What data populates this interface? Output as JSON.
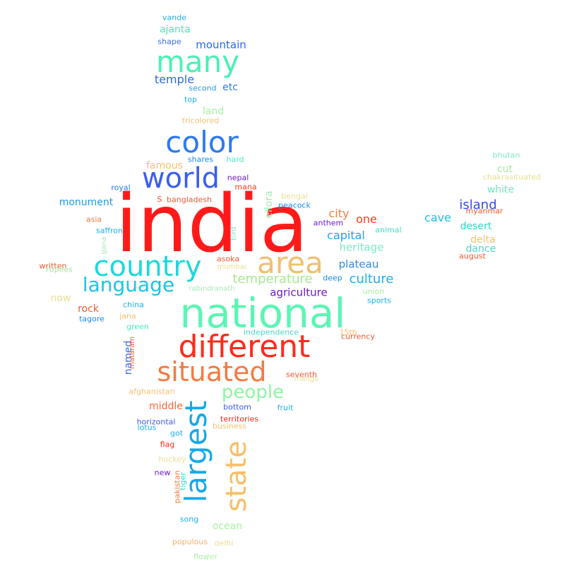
{
  "words": [
    {
      "text": "india",
      "color": "#ff1a1a"
    },
    {
      "text": "national",
      "color": "#5cf5b4"
    },
    {
      "text": "different",
      "color": "#ff2a1a"
    },
    {
      "text": "situated",
      "color": "#f47a42"
    },
    {
      "text": "country",
      "color": "#1cd8dc"
    },
    {
      "text": "world",
      "color": "#3a5ef0"
    },
    {
      "text": "color",
      "color": "#2a7af0"
    },
    {
      "text": "many",
      "color": "#4cf0b4"
    },
    {
      "text": "area",
      "color": "#f0c070"
    },
    {
      "text": "largest",
      "color": "#14a8e8"
    },
    {
      "text": "state",
      "color": "#f7bf68"
    },
    {
      "text": "language",
      "color": "#1ac4e4"
    },
    {
      "text": "people",
      "color": "#8ff4a4"
    },
    {
      "text": "temperature",
      "color": "#a8e890"
    },
    {
      "text": "culture",
      "color": "#1ab0e8"
    },
    {
      "text": "plateau",
      "color": "#2a8ae8"
    },
    {
      "text": "agriculture",
      "color": "#6a1ac8"
    },
    {
      "text": "heritage",
      "color": "#7ae8c8"
    },
    {
      "text": "capital",
      "color": "#2a9ae8"
    },
    {
      "text": "city",
      "color": "#f07a44"
    },
    {
      "text": "one",
      "color": "#ff3a1a"
    },
    {
      "text": "island",
      "color": "#3a4ae8"
    },
    {
      "text": "cave",
      "color": "#1ac4e4"
    },
    {
      "text": "desert",
      "color": "#2ad8c8"
    },
    {
      "text": "delta",
      "color": "#f7c070"
    },
    {
      "text": "dance",
      "color": "#4ad8c8"
    },
    {
      "text": "white",
      "color": "#6ae8c0"
    },
    {
      "text": "cut",
      "color": "#a8e8a0"
    },
    {
      "text": "monument",
      "color": "#1a9ae8"
    },
    {
      "text": "temple",
      "color": "#2a6ae8"
    },
    {
      "text": "mountain",
      "color": "#2a6ae8"
    },
    {
      "text": "ajanta",
      "color": "#4ae8b8"
    },
    {
      "text": "etc",
      "color": "#2a7ae8"
    },
    {
      "text": "land",
      "color": "#a8f0a0"
    },
    {
      "text": "famous",
      "color": "#f7c070"
    },
    {
      "text": "rock",
      "color": "#f05a34"
    },
    {
      "text": "now",
      "color": "#e8e094"
    },
    {
      "text": "middle",
      "color": "#f06a3a"
    },
    {
      "text": "ocean",
      "color": "#a8f0a0"
    },
    {
      "text": "named",
      "color": "#3a6ae8"
    },
    {
      "text": "s",
      "color": "#f06a3a"
    },
    {
      "text": "ellora",
      "color": "#a8e8b8"
    },
    {
      "text": "vande",
      "color": "#1ab0e8"
    },
    {
      "text": "shape",
      "color": "#3a6ae8"
    },
    {
      "text": "second",
      "color": "#2a9ae8"
    },
    {
      "text": "top",
      "color": "#1ab0e8"
    },
    {
      "text": "tricolored",
      "color": "#f7c070"
    },
    {
      "text": "shares",
      "color": "#1a8ae8"
    },
    {
      "text": "hard",
      "color": "#4ae8c8"
    },
    {
      "text": "nepal",
      "color": "#6a1ac8"
    },
    {
      "text": "mana",
      "color": "#ff3a1a"
    },
    {
      "text": "royal",
      "color": "#2a7ae8"
    },
    {
      "text": "bangladesh",
      "color": "#f05a34"
    },
    {
      "text": "bengal",
      "color": "#e8e094"
    },
    {
      "text": "peacock",
      "color": "#1a8ae8"
    },
    {
      "text": "asia",
      "color": "#f07a44"
    },
    {
      "text": "saffron",
      "color": "#1ab0e8"
    },
    {
      "text": "gana",
      "color": "#a8e8b8"
    },
    {
      "text": "bird",
      "color": "#7ae8c8"
    },
    {
      "text": "anthem",
      "color": "#6a1ac8"
    },
    {
      "text": "animal",
      "color": "#4ad8c8"
    },
    {
      "text": "written",
      "color": "#f05a34"
    },
    {
      "text": "rupees",
      "color": "#a8e8a0"
    },
    {
      "text": "asoka",
      "color": "#f05a34"
    },
    {
      "text": "mumbai",
      "color": "#e8e094"
    },
    {
      "text": "deep",
      "color": "#1a8ae8"
    },
    {
      "text": "rabindranath",
      "color": "#a8e8b8"
    },
    {
      "text": "union",
      "color": "#a8f0a0"
    },
    {
      "text": "sports",
      "color": "#1ab0e8"
    },
    {
      "text": "china",
      "color": "#1ab0e8"
    },
    {
      "text": "jana",
      "color": "#f7c070"
    },
    {
      "text": "tagore",
      "color": "#1a8ae8"
    },
    {
      "text": "green",
      "color": "#4ae8c8"
    },
    {
      "text": "independence",
      "color": "#4ad8c8"
    },
    {
      "text": "15th",
      "color": "#f7c070"
    },
    {
      "text": "currency",
      "color": "#f05a34"
    },
    {
      "text": "mataram",
      "color": "#f05a34"
    },
    {
      "text": "seventh",
      "color": "#f05a34"
    },
    {
      "text": "mango",
      "color": "#e8e094"
    },
    {
      "text": "afghanistan",
      "color": "#f7c070"
    },
    {
      "text": "bottom",
      "color": "#3a5ae8"
    },
    {
      "text": "fruit",
      "color": "#1ab0e8"
    },
    {
      "text": "horizontal",
      "color": "#3a5ae8"
    },
    {
      "text": "territories",
      "color": "#ff2a1a"
    },
    {
      "text": "lotus",
      "color": "#1ab0e8"
    },
    {
      "text": "business",
      "color": "#f7c070"
    },
    {
      "text": "got",
      "color": "#1ab0e8"
    },
    {
      "text": "flag",
      "color": "#ff2a1a"
    },
    {
      "text": "hockey",
      "color": "#e8e094"
    },
    {
      "text": "new",
      "color": "#6a1ac8"
    },
    {
      "text": "tiger",
      "color": "#2ad8c8"
    },
    {
      "text": "pakistan",
      "color": "#f07a44"
    },
    {
      "text": "song",
      "color": "#1ab0e8"
    },
    {
      "text": "populous",
      "color": "#f7b070"
    },
    {
      "text": "delhi",
      "color": "#e8e094"
    },
    {
      "text": "flower",
      "color": "#a8f0a0"
    },
    {
      "text": "bhutan",
      "color": "#7ae8c8"
    },
    {
      "text": "chakrasituated",
      "color": "#e8e094"
    },
    {
      "text": "myanmar",
      "color": "#f05a34"
    },
    {
      "text": "august",
      "color": "#f05a34"
    }
  ]
}
